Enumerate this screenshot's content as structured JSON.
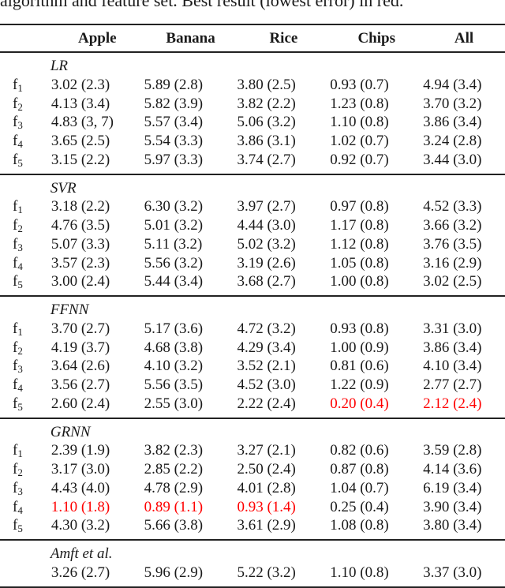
{
  "caption": "algorithm and feature set. Best result (lowest error) in red.",
  "columns": [
    "",
    "Apple",
    "Banana",
    "Rice",
    "Chips",
    "All"
  ],
  "highlight_color": "#ff0000",
  "sections": [
    {
      "name": "LR",
      "rows": [
        {
          "label": "f",
          "index": "1",
          "values": [
            "3.02 (2.3)",
            "5.89 (2.8)",
            "3.80 (2.5)",
            "0.93 (0.7)",
            "4.94 (3.4)"
          ],
          "best": [
            false,
            false,
            false,
            false,
            false
          ]
        },
        {
          "label": "f",
          "index": "2",
          "values": [
            "4.13 (3.4)",
            "5.82 (3.9)",
            "3.82 (2.2)",
            "1.23 (0.8)",
            "3.70 (3.2)"
          ],
          "best": [
            false,
            false,
            false,
            false,
            false
          ]
        },
        {
          "label": "f",
          "index": "3",
          "values": [
            "4.83 (3, 7)",
            "5.57 (3.4)",
            "5.06 (3.2)",
            "1.10 (0.8)",
            "3.86 (3.4)"
          ],
          "best": [
            false,
            false,
            false,
            false,
            false
          ]
        },
        {
          "label": "f",
          "index": "4",
          "values": [
            "3.65 (2.5)",
            "5.54 (3.3)",
            "3.86 (3.1)",
            "1.02 (0.7)",
            "3.24 (2.8)"
          ],
          "best": [
            false,
            false,
            false,
            false,
            false
          ]
        },
        {
          "label": "f",
          "index": "5",
          "values": [
            "3.15 (2.2)",
            "5.97 (3.3)",
            "3.74 (2.7)",
            "0.92 (0.7)",
            "3.44 (3.0)"
          ],
          "best": [
            false,
            false,
            false,
            false,
            false
          ]
        }
      ]
    },
    {
      "name": "SVR",
      "rows": [
        {
          "label": "f",
          "index": "1",
          "values": [
            "3.18 (2.2)",
            "6.30 (3.2)",
            "3.97 (2.7)",
            "0.97 (0.8)",
            "4.52 (3.3)"
          ],
          "best": [
            false,
            false,
            false,
            false,
            false
          ]
        },
        {
          "label": "f",
          "index": "2",
          "values": [
            "4.76 (3.5)",
            "5.01 (3.2)",
            "4.44 (3.0)",
            "1.17 (0.8)",
            "3.66 (3.2)"
          ],
          "best": [
            false,
            false,
            false,
            false,
            false
          ]
        },
        {
          "label": "f",
          "index": "3",
          "values": [
            "5.07 (3.3)",
            "5.11 (3.2)",
            "5.02 (3.2)",
            "1.12 (0.8)",
            "3.76 (3.5)"
          ],
          "best": [
            false,
            false,
            false,
            false,
            false
          ]
        },
        {
          "label": "f",
          "index": "4",
          "values": [
            "3.57 (2.3)",
            "5.56 (3.2)",
            "3.19 (2.6)",
            "1.05 (0.8)",
            "3.16 (2.9)"
          ],
          "best": [
            false,
            false,
            false,
            false,
            false
          ]
        },
        {
          "label": "f",
          "index": "5",
          "values": [
            "3.00 (2.4)",
            "5.44 (3.4)",
            "3.68 (2.7)",
            "1.00 (0.8)",
            "3.02 (2.5)"
          ],
          "best": [
            false,
            false,
            false,
            false,
            false
          ]
        }
      ]
    },
    {
      "name": "FFNN",
      "rows": [
        {
          "label": "f",
          "index": "1",
          "values": [
            "3.70 (2.7)",
            "5.17 (3.6)",
            "4.72 (3.2)",
            "0.93 (0.8)",
            "3.31 (3.0)"
          ],
          "best": [
            false,
            false,
            false,
            false,
            false
          ]
        },
        {
          "label": "f",
          "index": "2",
          "values": [
            "4.19 (3.7)",
            "4.68 (3.8)",
            "4.29 (3.4)",
            "1.00 (0.9)",
            "3.86 (3.4)"
          ],
          "best": [
            false,
            false,
            false,
            false,
            false
          ]
        },
        {
          "label": "f",
          "index": "3",
          "values": [
            "3.64 (2.6)",
            "4.10 (3.2)",
            "3.52 (2.1)",
            "0.81 (0.6)",
            "4.10 (3.4)"
          ],
          "best": [
            false,
            false,
            false,
            false,
            false
          ]
        },
        {
          "label": "f",
          "index": "4",
          "values": [
            "3.56 (2.7)",
            "5.56 (3.5)",
            "4.52 (3.0)",
            "1.22 (0.9)",
            "2.77 (2.7)"
          ],
          "best": [
            false,
            false,
            false,
            false,
            false
          ]
        },
        {
          "label": "f",
          "index": "5",
          "values": [
            "2.60 (2.4)",
            "2.55 (3.0)",
            "2.22 (2.4)",
            "0.20 (0.4)",
            "2.12 (2.4)"
          ],
          "best": [
            false,
            false,
            false,
            true,
            true
          ]
        }
      ]
    },
    {
      "name": "GRNN",
      "rows": [
        {
          "label": "f",
          "index": "1",
          "values": [
            "2.39 (1.9)",
            "3.82 (2.3)",
            "3.27 (2.1)",
            "0.82 (0.6)",
            "3.59 (2.8)"
          ],
          "best": [
            false,
            false,
            false,
            false,
            false
          ]
        },
        {
          "label": "f",
          "index": "2",
          "values": [
            "3.17 (3.0)",
            "2.85 (2.2)",
            "2.50 (2.4)",
            "0.87 (0.8)",
            "4.14 (3.6)"
          ],
          "best": [
            false,
            false,
            false,
            false,
            false
          ]
        },
        {
          "label": "f",
          "index": "3",
          "values": [
            "4.43 (4.0)",
            "4.78 (2.9)",
            "4.01 (2.8)",
            "1.04 (0.7)",
            "6.19 (3.4)"
          ],
          "best": [
            false,
            false,
            false,
            false,
            false
          ]
        },
        {
          "label": "f",
          "index": "4",
          "values": [
            "1.10 (1.8)",
            "0.89 (1.1)",
            "0.93 (1.4)",
            "0.25 (0.4)",
            "3.90 (3.4)"
          ],
          "best": [
            true,
            true,
            true,
            false,
            false
          ]
        },
        {
          "label": "f",
          "index": "5",
          "values": [
            "4.30 (3.2)",
            "5.66 (3.8)",
            "3.61 (2.9)",
            "1.08 (0.8)",
            "3.80 (3.4)"
          ],
          "best": [
            false,
            false,
            false,
            false,
            false
          ]
        }
      ]
    },
    {
      "name": "Amft et al.",
      "rows": [
        {
          "label": "",
          "index": "",
          "values": [
            "3.26 (2.7)",
            "5.96 (2.9)",
            "5.22 (3.2)",
            "1.10 (0.8)",
            "3.37 (3.0)"
          ],
          "best": [
            false,
            false,
            false,
            false,
            false
          ]
        }
      ]
    }
  ]
}
